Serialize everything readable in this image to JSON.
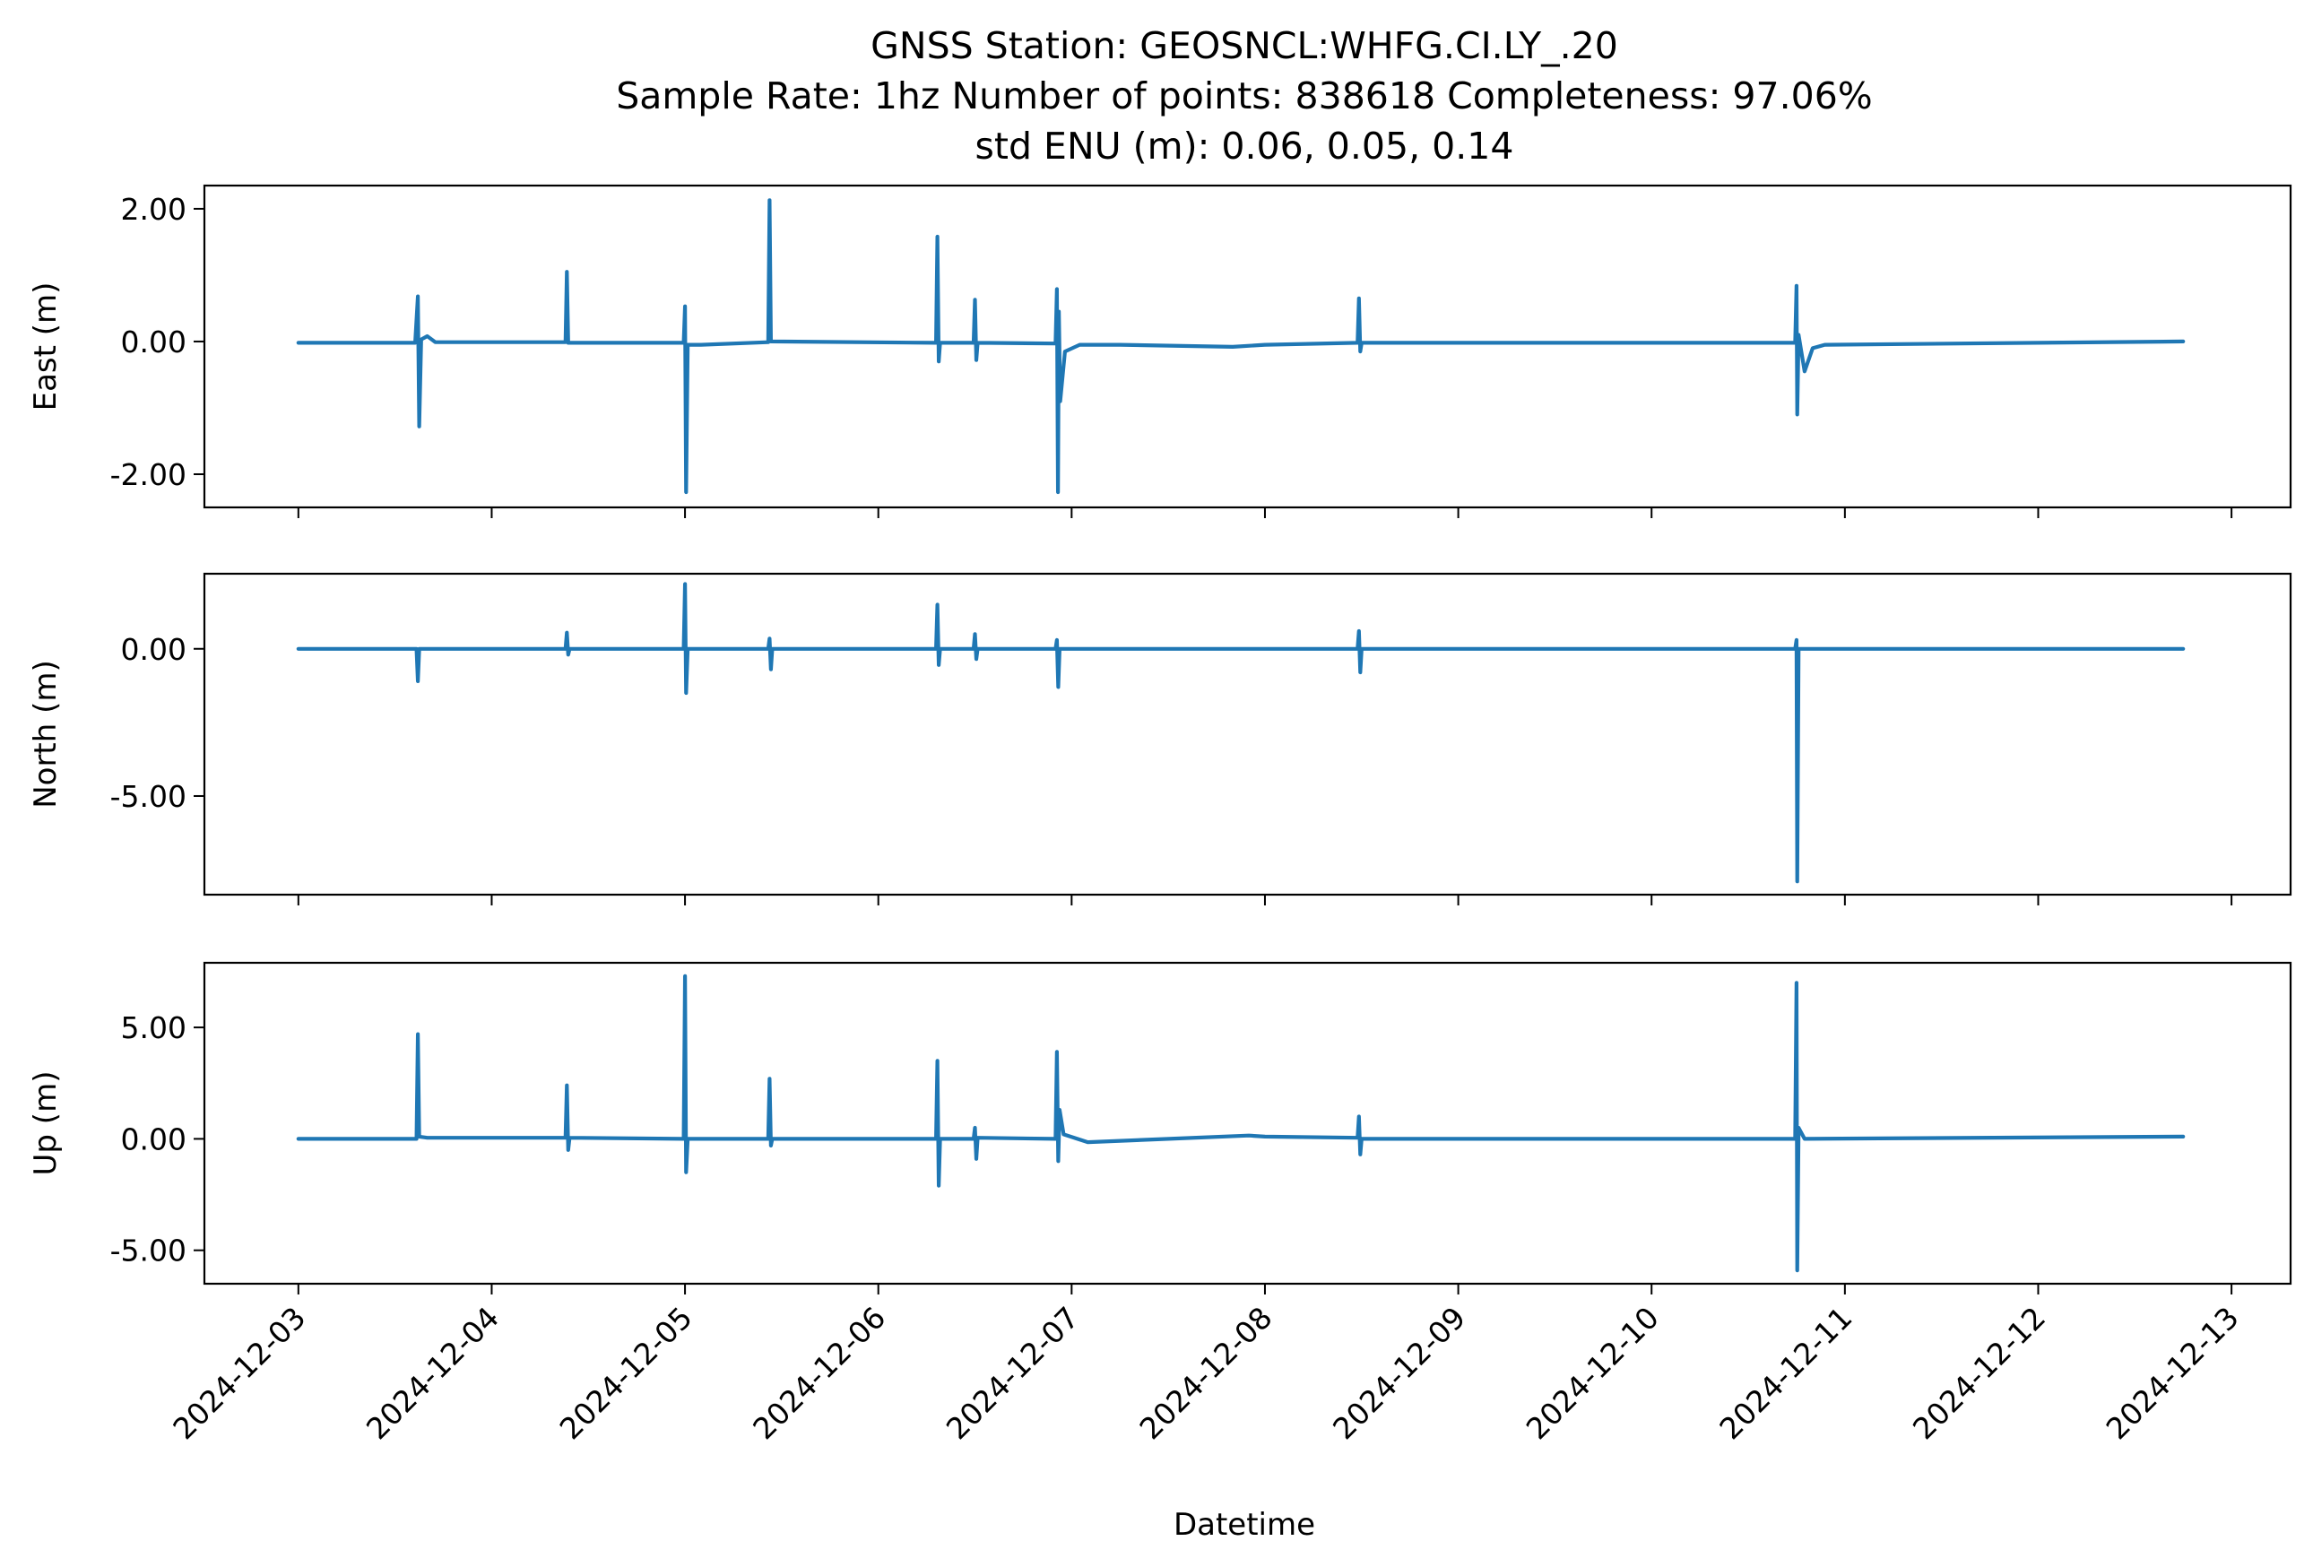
{
  "chart_data": {
    "type": "line",
    "title_lines": [
      "GNSS Station: GEOSNCL:WHFG.CI.LY_.20",
      "Sample Rate: 1hz   Number of points: 838618    Completeness:  97.06%",
      "std ENU (m):  0.06, 0.05, 0.14"
    ],
    "xlabel": "Datetime",
    "x_range": [
      "2024-12-02T12:20",
      "2024-12-13T07:20"
    ],
    "x_ticks": [
      "2024-12-03",
      "2024-12-04",
      "2024-12-05",
      "2024-12-06",
      "2024-12-07",
      "2024-12-08",
      "2024-12-09",
      "2024-12-10",
      "2024-12-11",
      "2024-12-12",
      "2024-12-13"
    ],
    "grid": false,
    "line_color": "#1f77b4",
    "panels": [
      {
        "name": "East",
        "ylabel": "East (m)",
        "ylim": [
          -2.5,
          2.35
        ],
        "y_ticks": [
          -2.0,
          0.0,
          2.0
        ],
        "y_tick_labels": [
          "-2.00",
          "0.00",
          "2.00"
        ],
        "points": [
          [
            "2024-12-03T00:00",
            -0.02
          ],
          [
            "2024-12-03T14:30",
            -0.02
          ],
          [
            "2024-12-03T14:50",
            0.68
          ],
          [
            "2024-12-03T15:00",
            -1.28
          ],
          [
            "2024-12-03T15:15",
            0.03
          ],
          [
            "2024-12-03T16:00",
            0.08
          ],
          [
            "2024-12-03T17:00",
            -0.01
          ],
          [
            "2024-12-04T09:10",
            -0.01
          ],
          [
            "2024-12-04T09:20",
            1.05
          ],
          [
            "2024-12-04T09:30",
            -0.02
          ],
          [
            "2024-12-04T23:50",
            -0.02
          ],
          [
            "2024-12-05T00:00",
            0.53
          ],
          [
            "2024-12-05T00:08",
            -2.27
          ],
          [
            "2024-12-05T00:20",
            -0.05
          ],
          [
            "2024-12-05T02:00",
            -0.05
          ],
          [
            "2024-12-05T10:20",
            -0.01
          ],
          [
            "2024-12-05T10:30",
            2.13
          ],
          [
            "2024-12-05T10:40",
            0.0
          ],
          [
            "2024-12-06T07:10",
            -0.02
          ],
          [
            "2024-12-06T07:20",
            1.58
          ],
          [
            "2024-12-06T07:30",
            -0.3
          ],
          [
            "2024-12-06T07:40",
            -0.02
          ],
          [
            "2024-12-06T11:50",
            -0.02
          ],
          [
            "2024-12-06T12:00",
            0.63
          ],
          [
            "2024-12-06T12:10",
            -0.28
          ],
          [
            "2024-12-06T12:20",
            -0.02
          ],
          [
            "2024-12-06T22:00",
            -0.03
          ],
          [
            "2024-12-06T22:10",
            0.79
          ],
          [
            "2024-12-06T22:18",
            -2.27
          ],
          [
            "2024-12-06T22:25",
            0.45
          ],
          [
            "2024-12-06T22:35",
            -0.9
          ],
          [
            "2024-12-06T23:10",
            -0.15
          ],
          [
            "2024-12-07T01:00",
            -0.05
          ],
          [
            "2024-12-07T06:00",
            -0.05
          ],
          [
            "2024-12-07T20:00",
            -0.08
          ],
          [
            "2024-12-08T00:00",
            -0.05
          ],
          [
            "2024-12-08T11:30",
            -0.02
          ],
          [
            "2024-12-08T11:40",
            0.65
          ],
          [
            "2024-12-08T11:50",
            -0.15
          ],
          [
            "2024-12-08T12:00",
            -0.02
          ],
          [
            "2024-12-10T17:50",
            -0.02
          ],
          [
            "2024-12-10T18:00",
            0.84
          ],
          [
            "2024-12-10T18:05",
            -1.1
          ],
          [
            "2024-12-10T18:15",
            0.1
          ],
          [
            "2024-12-10T19:00",
            -0.45
          ],
          [
            "2024-12-10T20:00",
            -0.1
          ],
          [
            "2024-12-10T21:30",
            -0.05
          ],
          [
            "2024-12-12T18:00",
            0.0
          ]
        ]
      },
      {
        "name": "North",
        "ylabel": "North (m)",
        "ylim": [
          -8.35,
          2.55
        ],
        "y_ticks": [
          -5.0,
          0.0
        ],
        "y_tick_labels": [
          "-5.00",
          "0.00"
        ],
        "points": [
          [
            "2024-12-03T00:00",
            0.0
          ],
          [
            "2024-12-03T14:40",
            0.0
          ],
          [
            "2024-12-03T14:50",
            -1.1
          ],
          [
            "2024-12-03T15:00",
            0.0
          ],
          [
            "2024-12-04T09:10",
            0.0
          ],
          [
            "2024-12-04T09:20",
            0.55
          ],
          [
            "2024-12-04T09:30",
            -0.2
          ],
          [
            "2024-12-04T09:40",
            0.0
          ],
          [
            "2024-12-04T23:50",
            0.0
          ],
          [
            "2024-12-05T00:00",
            2.2
          ],
          [
            "2024-12-05T00:08",
            -1.5
          ],
          [
            "2024-12-05T00:20",
            0.0
          ],
          [
            "2024-12-05T10:20",
            0.0
          ],
          [
            "2024-12-05T10:30",
            0.35
          ],
          [
            "2024-12-05T10:40",
            -0.7
          ],
          [
            "2024-12-05T10:50",
            0.0
          ],
          [
            "2024-12-06T07:10",
            0.0
          ],
          [
            "2024-12-06T07:20",
            1.5
          ],
          [
            "2024-12-06T07:30",
            -0.55
          ],
          [
            "2024-12-06T07:40",
            0.0
          ],
          [
            "2024-12-06T11:50",
            0.0
          ],
          [
            "2024-12-06T12:00",
            0.5
          ],
          [
            "2024-12-06T12:10",
            -0.35
          ],
          [
            "2024-12-06T12:20",
            0.0
          ],
          [
            "2024-12-06T22:00",
            0.0
          ],
          [
            "2024-12-06T22:10",
            0.3
          ],
          [
            "2024-12-06T22:20",
            -1.3
          ],
          [
            "2024-12-06T22:30",
            0.0
          ],
          [
            "2024-12-08T11:30",
            0.0
          ],
          [
            "2024-12-08T11:40",
            0.6
          ],
          [
            "2024-12-08T11:50",
            -0.8
          ],
          [
            "2024-12-08T12:00",
            0.0
          ],
          [
            "2024-12-10T17:50",
            0.0
          ],
          [
            "2024-12-10T18:00",
            0.3
          ],
          [
            "2024-12-10T18:05",
            -7.9
          ],
          [
            "2024-12-10T18:15",
            0.0
          ],
          [
            "2024-12-12T18:00",
            0.0
          ]
        ]
      },
      {
        "name": "Up",
        "ylabel": "Up (m)",
        "ylim": [
          -6.5,
          7.9
        ],
        "y_ticks": [
          -5.0,
          0.0,
          5.0
        ],
        "y_tick_labels": [
          "-5.00",
          "0.00",
          "5.00"
        ],
        "points": [
          [
            "2024-12-03T00:00",
            0.0
          ],
          [
            "2024-12-03T14:40",
            0.0
          ],
          [
            "2024-12-03T14:50",
            4.7
          ],
          [
            "2024-12-03T15:00",
            0.1
          ],
          [
            "2024-12-03T16:00",
            0.05
          ],
          [
            "2024-12-04T09:10",
            0.05
          ],
          [
            "2024-12-04T09:20",
            2.4
          ],
          [
            "2024-12-04T09:30",
            -0.5
          ],
          [
            "2024-12-04T09:40",
            0.05
          ],
          [
            "2024-12-04T23:50",
            0.0
          ],
          [
            "2024-12-05T00:00",
            7.3
          ],
          [
            "2024-12-05T00:08",
            -1.5
          ],
          [
            "2024-12-05T00:20",
            0.0
          ],
          [
            "2024-12-05T10:20",
            0.0
          ],
          [
            "2024-12-05T10:30",
            2.7
          ],
          [
            "2024-12-05T10:40",
            -0.3
          ],
          [
            "2024-12-05T10:50",
            0.0
          ],
          [
            "2024-12-06T07:10",
            0.0
          ],
          [
            "2024-12-06T07:20",
            3.5
          ],
          [
            "2024-12-06T07:30",
            -2.1
          ],
          [
            "2024-12-06T07:40",
            0.0
          ],
          [
            "2024-12-06T11:50",
            0.0
          ],
          [
            "2024-12-06T12:00",
            0.5
          ],
          [
            "2024-12-06T12:10",
            -0.9
          ],
          [
            "2024-12-06T12:20",
            0.05
          ],
          [
            "2024-12-06T22:00",
            0.0
          ],
          [
            "2024-12-06T22:10",
            3.9
          ],
          [
            "2024-12-06T22:20",
            -1.0
          ],
          [
            "2024-12-06T22:30",
            1.3
          ],
          [
            "2024-12-06T23:00",
            0.2
          ],
          [
            "2024-12-07T02:00",
            -0.15
          ],
          [
            "2024-12-07T22:00",
            0.15
          ],
          [
            "2024-12-08T00:00",
            0.1
          ],
          [
            "2024-12-08T11:30",
            0.05
          ],
          [
            "2024-12-08T11:40",
            1.0
          ],
          [
            "2024-12-08T11:50",
            -0.7
          ],
          [
            "2024-12-08T12:00",
            0.0
          ],
          [
            "2024-12-10T17:50",
            0.0
          ],
          [
            "2024-12-10T18:00",
            7.0
          ],
          [
            "2024-12-10T18:05",
            -5.9
          ],
          [
            "2024-12-10T18:15",
            0.5
          ],
          [
            "2024-12-10T19:00",
            0.0
          ],
          [
            "2024-12-12T18:00",
            0.1
          ]
        ]
      }
    ]
  }
}
